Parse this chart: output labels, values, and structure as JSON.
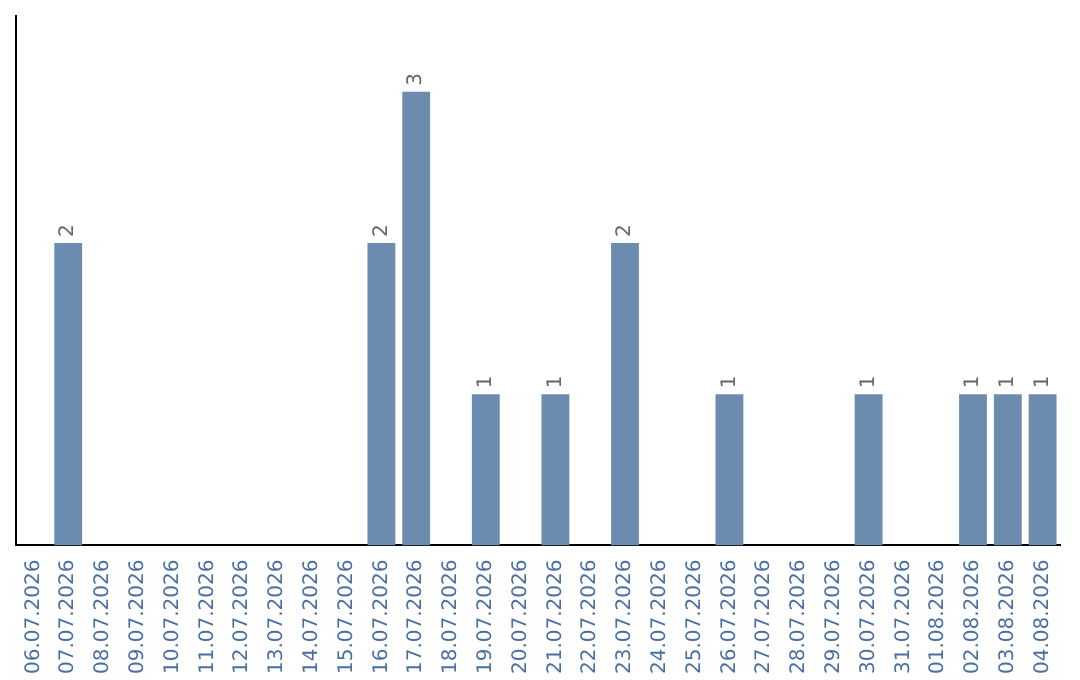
{
  "chart_data": {
    "type": "bar",
    "categories": [
      "06.07.2026",
      "07.07.2026",
      "08.07.2026",
      "09.07.2026",
      "10.07.2026",
      "11.07.2026",
      "12.07.2026",
      "13.07.2026",
      "14.07.2026",
      "15.07.2026",
      "16.07.2026",
      "17.07.2026",
      "18.07.2026",
      "19.07.2026",
      "20.07.2026",
      "21.07.2026",
      "22.07.2026",
      "23.07.2026",
      "24.07.2026",
      "25.07.2026",
      "26.07.2026",
      "27.07.2026",
      "28.07.2026",
      "29.07.2026",
      "30.07.2026",
      "31.07.2026",
      "01.08.2026",
      "02.08.2026",
      "03.08.2026",
      "04.08.2026"
    ],
    "values": [
      0,
      2,
      0,
      0,
      0,
      0,
      0,
      0,
      0,
      0,
      2,
      3,
      0,
      1,
      0,
      1,
      0,
      2,
      0,
      0,
      1,
      0,
      0,
      0,
      1,
      0,
      0,
      1,
      1,
      1
    ],
    "value_labels": [
      null,
      "2",
      null,
      null,
      null,
      null,
      null,
      null,
      null,
      null,
      "2",
      "3",
      null,
      "1",
      null,
      "1",
      null,
      "2",
      null,
      null,
      "1",
      null,
      null,
      null,
      "1",
      null,
      null,
      "1",
      "1",
      "1"
    ],
    "color": "#6b8caf",
    "tick_labels": "x",
    "grid": false,
    "legend": false
  }
}
